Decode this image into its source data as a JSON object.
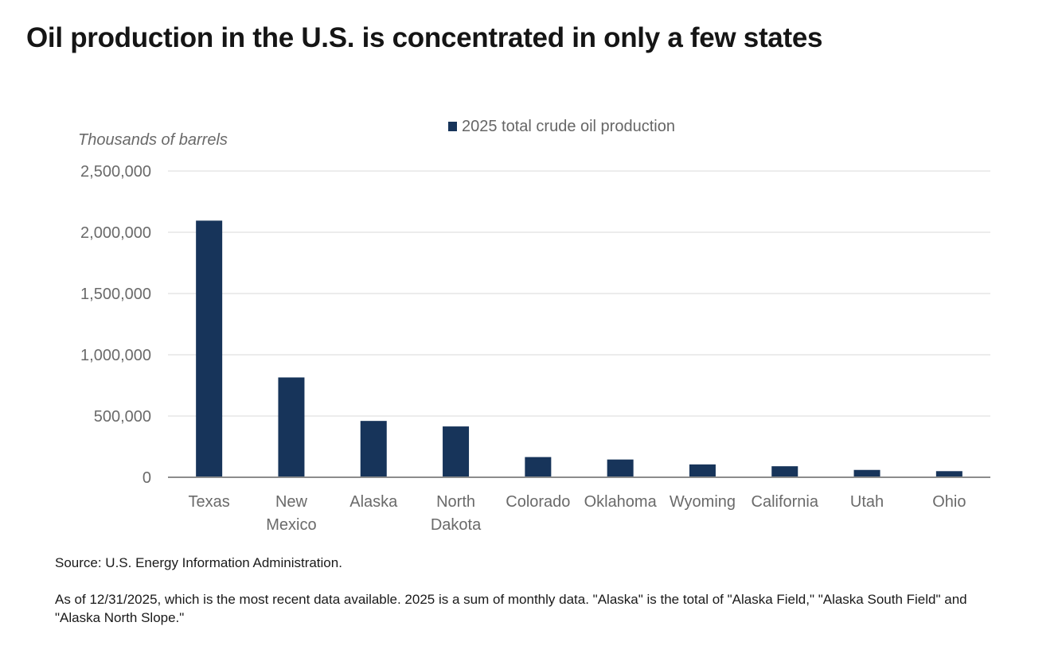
{
  "title": "Oil production in the U.S. is concentrated in only a few states",
  "chart_data": {
    "type": "bar",
    "ylabel": "Thousands of barrels",
    "ylim": [
      0,
      2500000
    ],
    "yticks": [
      0,
      500000,
      1000000,
      1500000,
      2000000,
      2500000
    ],
    "ytick_labels": [
      "0",
      "500,000",
      "1,000,000",
      "1,500,000",
      "2,000,000",
      "2,500,000"
    ],
    "grid": true,
    "legend_position": "top",
    "categories": [
      [
        "Texas"
      ],
      [
        "New",
        "Mexico"
      ],
      [
        "Alaska"
      ],
      [
        "North",
        "Dakota"
      ],
      [
        "Colorado"
      ],
      [
        "Oklahoma"
      ],
      [
        "Wyoming"
      ],
      [
        "California"
      ],
      [
        "Utah"
      ],
      [
        "Ohio"
      ]
    ],
    "series": [
      {
        "name": "2025 total crude oil production",
        "color": "#17345a",
        "values": [
          2095000,
          815000,
          460000,
          415000,
          165000,
          145000,
          105000,
          90000,
          60000,
          50000
        ]
      }
    ]
  },
  "notes": {
    "source": "Source: U.S. Energy Information Administration.",
    "footnote": "As of 12/31/2025, which is the most recent data available. 2025 is a sum of monthly data. \"Alaska\" is the total of \"Alaska Field,\" \"Alaska South Field\" and \"Alaska North Slope.\""
  }
}
